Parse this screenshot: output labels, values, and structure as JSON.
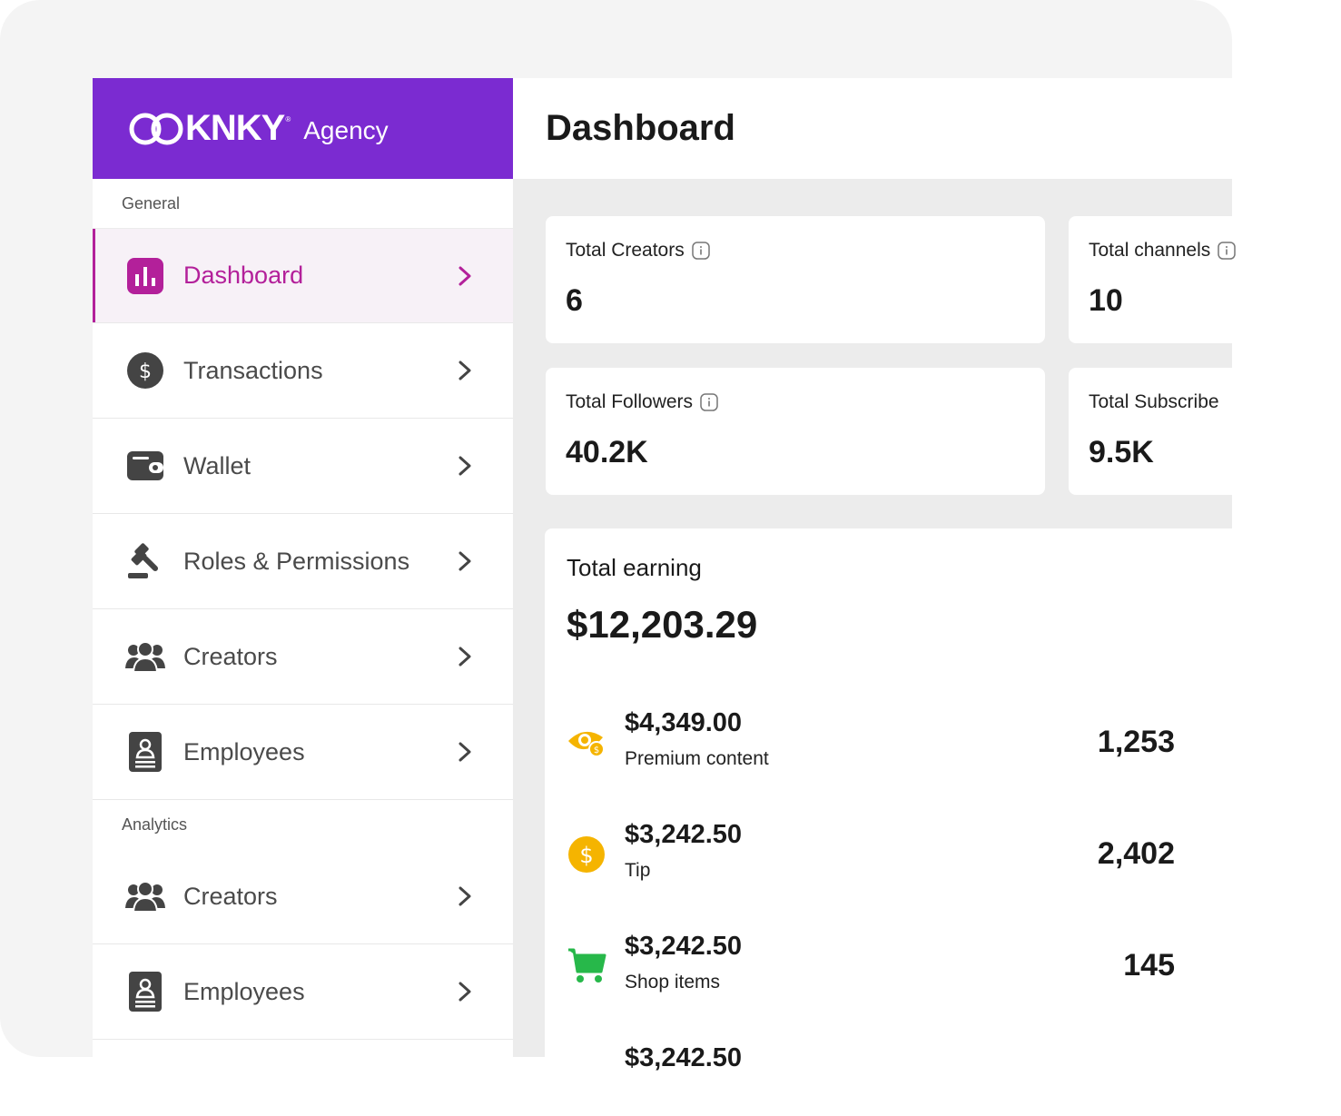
{
  "brand": {
    "logo_text": "KNKY",
    "logo_tm": "®",
    "suffix": "Agency"
  },
  "header": {
    "title": "Dashboard"
  },
  "sidebar": {
    "general_label": "General",
    "analytics_label": "Analytics",
    "general_items": [
      {
        "label": "Dashboard",
        "icon": "bar-chart-icon",
        "active": true
      },
      {
        "label": "Transactions",
        "icon": "dollar-circle-icon"
      },
      {
        "label": "Wallet",
        "icon": "wallet-icon"
      },
      {
        "label": "Roles & Permissions",
        "icon": "gavel-icon"
      },
      {
        "label": "Creators",
        "icon": "users-icon"
      },
      {
        "label": "Employees",
        "icon": "badge-icon"
      }
    ],
    "analytics_items": [
      {
        "label": "Creators",
        "icon": "users-icon"
      },
      {
        "label": "Employees",
        "icon": "badge-icon"
      }
    ]
  },
  "stats": [
    {
      "label": "Total Creators",
      "value": "6"
    },
    {
      "label": "Total channels",
      "value": "10"
    },
    {
      "label": "Total Followers",
      "value": "40.2K"
    },
    {
      "label": "Total Subscribe",
      "value": "9.5K"
    }
  ],
  "earning": {
    "title": "Total earning",
    "total": "$12,203.29",
    "rows": [
      {
        "amount": "$4,349.00",
        "name": "Premium content",
        "count": "1,253",
        "icon": "eye-coin-icon"
      },
      {
        "amount": "$3,242.50",
        "name": "Tip",
        "count": "2,402",
        "icon": "dollar-coin-icon"
      },
      {
        "amount": "$3,242.50",
        "name": "Shop items",
        "count": "145",
        "icon": "shopping-cart-icon"
      },
      {
        "amount": "$3,242.50",
        "name": "",
        "count": "",
        "icon": ""
      }
    ]
  },
  "colors": {
    "brand": "#7b2bd1",
    "active": "#b3209a",
    "coin": "#f5b400",
    "cart": "#27b84a"
  }
}
